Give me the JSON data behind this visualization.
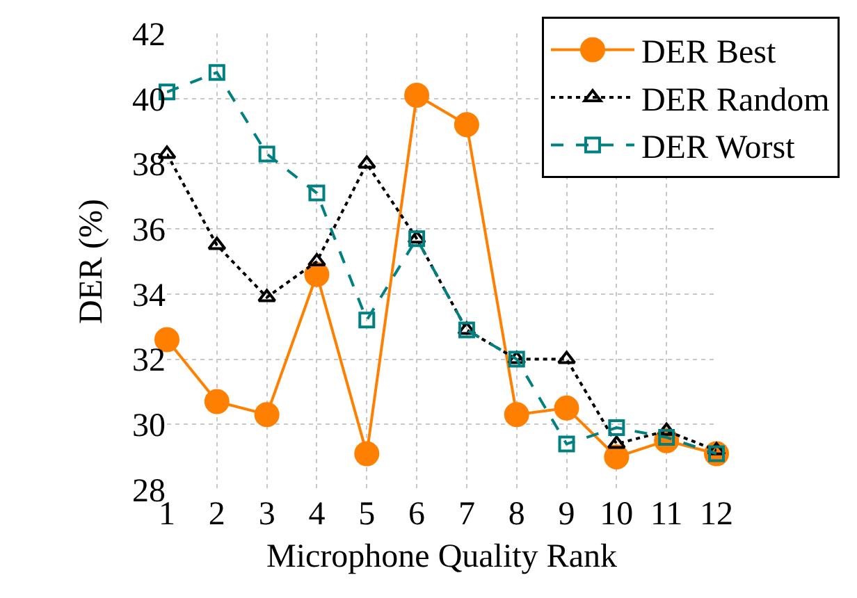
{
  "chart_data": {
    "type": "line",
    "xlabel": "Microphone Quality Rank",
    "ylabel": "DER (%)",
    "x": [
      1,
      2,
      3,
      4,
      5,
      6,
      7,
      8,
      9,
      10,
      11,
      12
    ],
    "series": [
      {
        "name": "DER Best",
        "color": "#ff8000",
        "marker": "circle",
        "line_style": "solid",
        "values": [
          32.6,
          30.7,
          30.3,
          34.6,
          29.1,
          40.1,
          39.2,
          30.3,
          30.5,
          29.0,
          29.5,
          29.1
        ]
      },
      {
        "name": "DER Random",
        "color": "#000000",
        "marker": "triangle",
        "line_style": "dotted",
        "values": [
          38.3,
          35.5,
          33.9,
          35.0,
          38.0,
          35.7,
          32.9,
          32.0,
          32.0,
          29.4,
          29.8,
          29.2
        ]
      },
      {
        "name": "DER Worst",
        "color": "#008080",
        "marker": "square",
        "line_style": "dashed",
        "values": [
          40.2,
          40.8,
          38.3,
          37.1,
          33.2,
          35.7,
          32.9,
          32.0,
          29.4,
          29.9,
          29.6,
          29.1
        ]
      }
    ],
    "xlim": [
      1,
      12
    ],
    "xticks": [
      1,
      2,
      3,
      4,
      5,
      6,
      7,
      8,
      9,
      10,
      11,
      12
    ],
    "ylim": [
      28,
      42
    ],
    "yticks": [
      28,
      30,
      32,
      34,
      36,
      38,
      40,
      42
    ],
    "grid": true,
    "legend": "top right"
  }
}
